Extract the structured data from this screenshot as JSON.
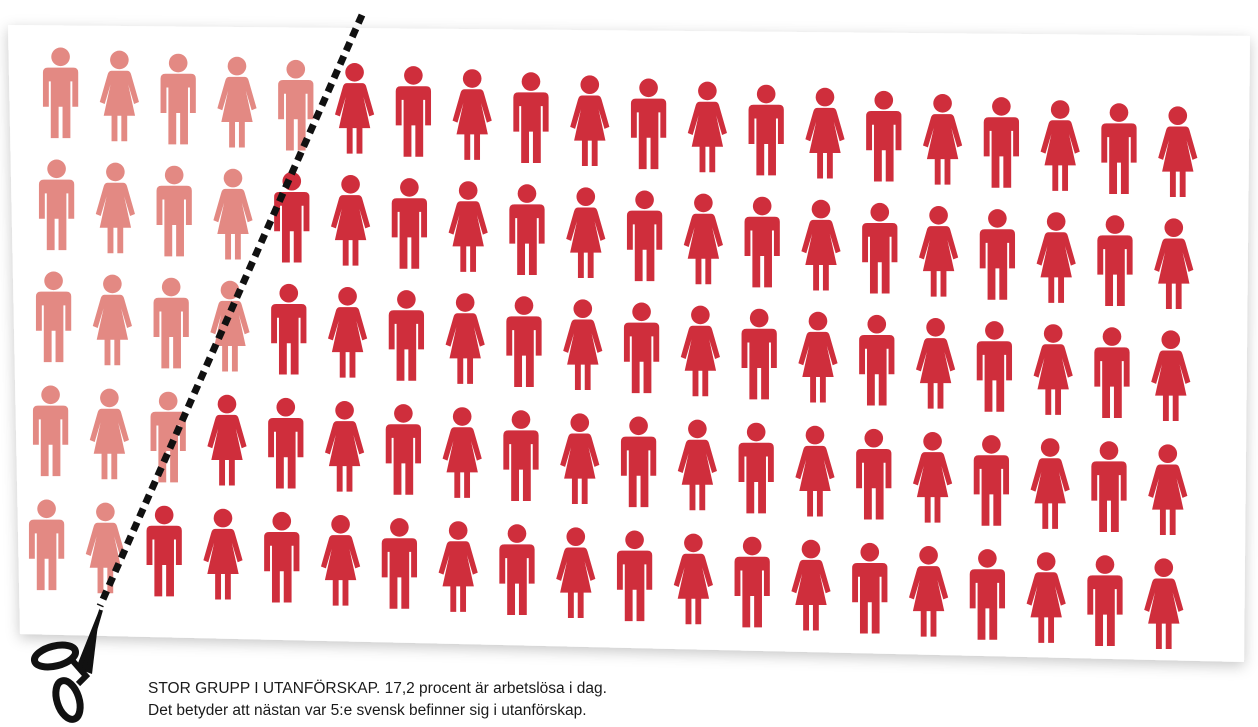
{
  "caption": {
    "line1": "STOR GRUPP I UTANFÖRSKAP. 17,2 procent är arbetslösa i dag.",
    "line2": "Det betyder att nästan var 5:e svensk befinner sig i utanförskap."
  },
  "figure": {
    "rows": 5,
    "columns": 20,
    "pattern": [
      "man",
      "woman"
    ],
    "faded_per_row": [
      5,
      4,
      4,
      3,
      2
    ],
    "colors": {
      "active": "#cf2e3c",
      "faded": "#e38983",
      "paper": "#ffffff",
      "cut_line": "#111111",
      "scissors": "#111111"
    },
    "icons": [
      "man-icon",
      "woman-icon",
      "scissors-icon"
    ]
  }
}
